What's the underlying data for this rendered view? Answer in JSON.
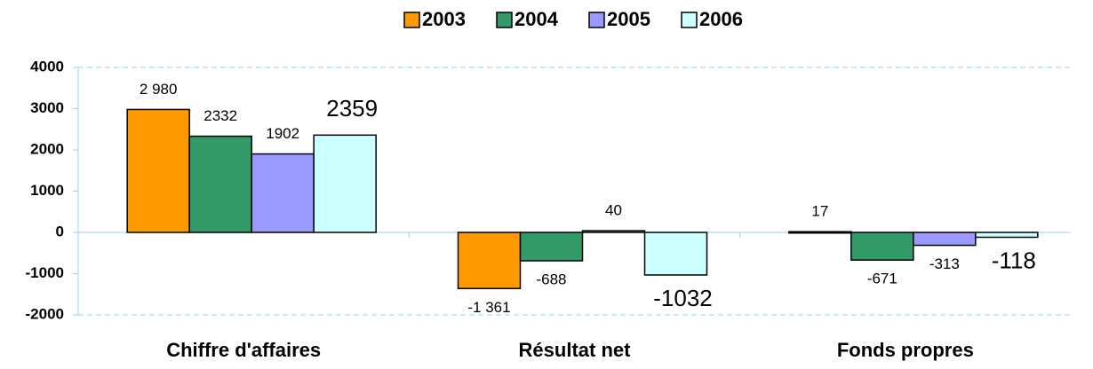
{
  "chart_data": {
    "type": "bar",
    "categories": [
      "Chiffre d'affaires",
      "Résultat net",
      "Fonds propres"
    ],
    "series": [
      {
        "name": "2003",
        "color": "#ff9900",
        "values": [
          2980,
          -1361,
          17
        ],
        "value_labels": [
          "2 980",
          "-1 361",
          "17"
        ]
      },
      {
        "name": "2004",
        "color": "#339966",
        "values": [
          2332,
          -688,
          -671
        ]
      },
      {
        "name": "2005",
        "color": "#9999ff",
        "values": [
          1902,
          40,
          -313
        ]
      },
      {
        "name": "2006",
        "color": "#ccffff",
        "values": [
          2359,
          -1032,
          -118
        ]
      }
    ],
    "ylim": [
      -2000,
      4000
    ],
    "yticks": [
      -2000,
      -1000,
      0,
      1000,
      2000,
      3000,
      4000
    ],
    "legend": "top"
  }
}
